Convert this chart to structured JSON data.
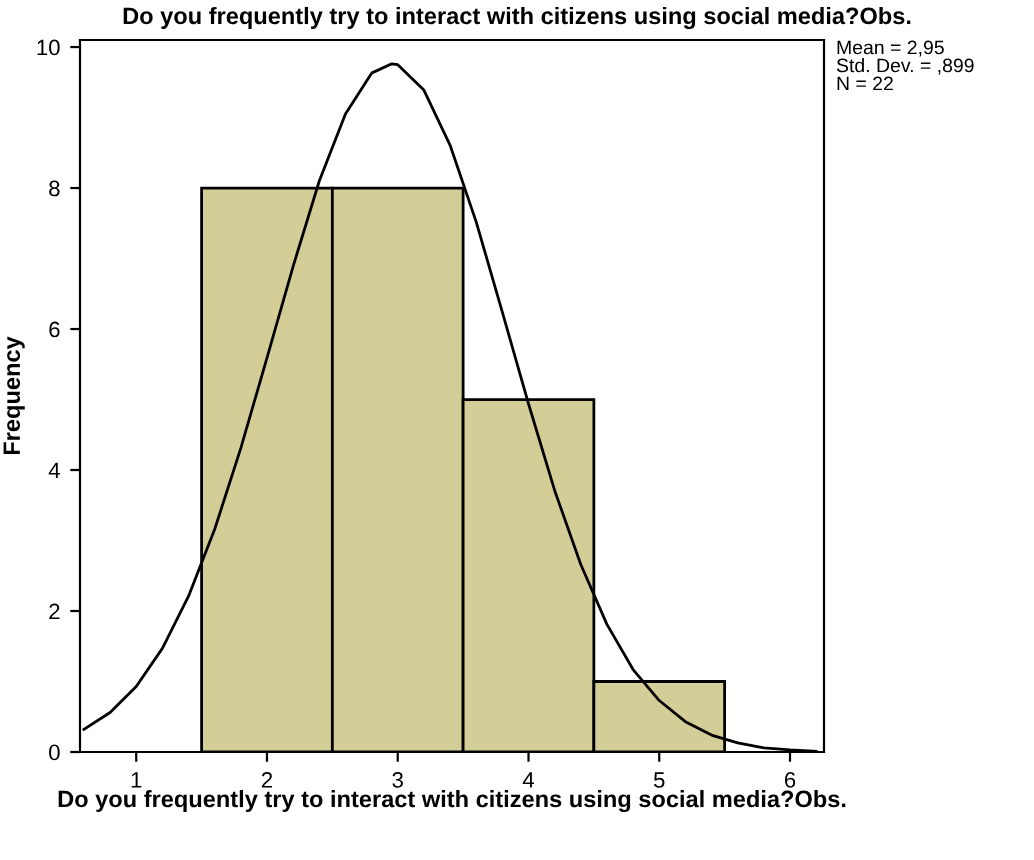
{
  "chart_data": {
    "type": "histogram",
    "title": "Do you frequently try to interact with citizens using social media?Obs.",
    "xlabel": "Do you frequently try to interact with citizens using social media?Obs.",
    "ylabel": "Frequency",
    "bins": [
      1.5,
      2.5,
      3.5,
      4.5,
      5.5
    ],
    "values": [
      8,
      8,
      5,
      1
    ],
    "color": "#d3ce97",
    "series": [
      {
        "type": "line",
        "color": "#000000",
        "x": [
          0.6,
          0.8,
          1.0,
          1.2,
          1.4,
          1.6,
          1.8,
          2.0,
          2.2,
          2.4,
          2.6,
          2.8,
          2.95,
          3.0,
          3.2,
          3.4,
          3.6,
          3.8,
          4.0,
          4.2,
          4.4,
          4.6,
          4.8,
          5.0,
          5.2,
          5.4,
          5.6,
          5.8,
          6.0,
          6.2
        ],
        "values": [
          0.32,
          0.56,
          0.93,
          1.47,
          2.21,
          3.16,
          4.31,
          5.59,
          6.89,
          8.1,
          9.05,
          9.63,
          9.76,
          9.75,
          9.39,
          8.61,
          7.52,
          6.24,
          4.94,
          3.71,
          2.66,
          1.81,
          1.17,
          0.73,
          0.43,
          0.24,
          0.13,
          0.06,
          0.03,
          0.01
        ]
      }
    ],
    "annotations": [
      "Mean = 2,95",
      "Std. Dev. = ,899",
      "N = 22"
    ],
    "xlim": [
      0.57,
      6.26
    ],
    "xticks": [
      1,
      2,
      3,
      4,
      5,
      6
    ],
    "ylim": [
      0,
      10.1
    ],
    "yticks": [
      0,
      2,
      4,
      6,
      8,
      10
    ],
    "grid": false,
    "legend": false
  }
}
